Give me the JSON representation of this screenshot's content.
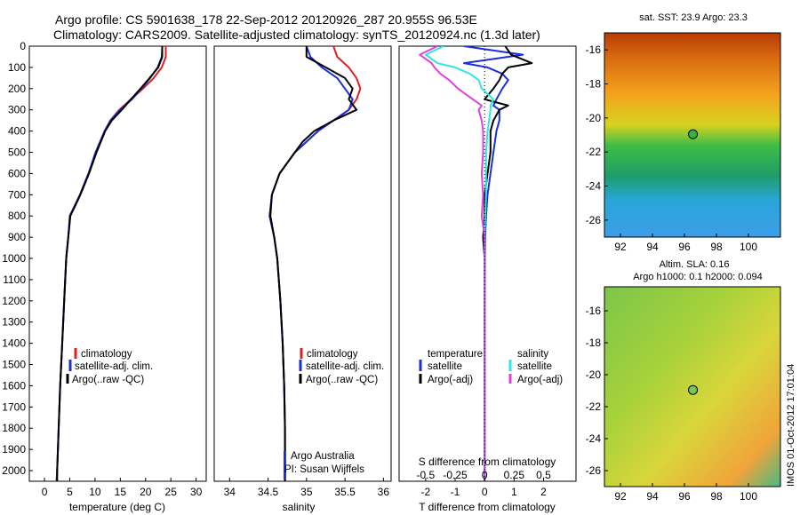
{
  "title": "Argo profile: CS 5901638_178 22-Sep-2012 20120926_287 20.955S 96.53E",
  "subtitle": "Climatology: CARS2009. Satellite-adjusted climatology: synTS_20120924.nc (1.3d later)",
  "credits": {
    "line1": "Argo Australia",
    "line2": "PI: Susan Wijffels"
  },
  "footer": {
    "timestamp": "IMOS 01-Oct-2012 17:01:04"
  },
  "depth_axis": {
    "ticks": [
      0,
      100,
      200,
      300,
      400,
      500,
      600,
      700,
      800,
      900,
      1000,
      1100,
      1200,
      1300,
      1400,
      1500,
      1600,
      1700,
      1800,
      1900,
      2000
    ],
    "ylim": [
      2050,
      0
    ]
  },
  "colors": {
    "climatology": "#e02020",
    "satellite": "#1a2fd8",
    "argo": "#000000",
    "salinity_satellite": "#30e5e5",
    "salinity_argo": "#e040e0"
  },
  "chart_data": [
    {
      "type": "line",
      "xlabel": "temperature (deg C)",
      "ylabel": "",
      "xlim": [
        -3,
        32
      ],
      "ylim": [
        2050,
        0
      ],
      "xticks": [
        0,
        5,
        10,
        15,
        20,
        25,
        30
      ],
      "depth": [
        0,
        50,
        100,
        150,
        200,
        250,
        300,
        350,
        400,
        500,
        600,
        700,
        800,
        900,
        1000,
        1200,
        1400,
        1600,
        1800,
        2000,
        2050
      ],
      "series": [
        {
          "name": "climatology",
          "color": "#e02020",
          "values": [
            24.0,
            24.0,
            23.2,
            21.6,
            19.5,
            17.1,
            14.8,
            13.0,
            11.9,
            10.2,
            8.8,
            7.1,
            5.1,
            4.7,
            4.3,
            3.9,
            3.5,
            3.1,
            2.8,
            2.5,
            2.4
          ]
        },
        {
          "name": "satellite-adj. clim.",
          "color": "#1a2fd8",
          "values": [
            23.3,
            23.2,
            22.4,
            20.9,
            19.2,
            17.3,
            14.9,
            13.1,
            11.9,
            10.1,
            8.7,
            7.0,
            5.0,
            4.7,
            4.3,
            3.9,
            3.5,
            3.1,
            2.8,
            2.5,
            2.4
          ]
        },
        {
          "name": "Argo(..raw -QC)",
          "color": "#000000",
          "values": [
            23.3,
            23.3,
            22.5,
            20.8,
            19.0,
            17.1,
            15.3,
            13.3,
            12.0,
            10.3,
            8.8,
            7.1,
            5.1,
            4.7,
            4.3,
            3.9,
            3.5,
            3.1,
            2.8,
            2.5,
            2.5
          ]
        }
      ]
    },
    {
      "type": "line",
      "xlabel": "salinity",
      "ylabel": "",
      "xlim": [
        33.8,
        36.1
      ],
      "ylim": [
        2050,
        0
      ],
      "xticks": [
        34,
        34.5,
        35,
        35.5,
        36
      ],
      "depth": [
        0,
        50,
        100,
        150,
        200,
        250,
        300,
        350,
        400,
        450,
        500,
        600,
        700,
        800,
        900,
        1000,
        1200,
        1400,
        1600,
        1800,
        2000,
        2050
      ],
      "series": [
        {
          "name": "climatology",
          "color": "#e02020",
          "values": [
            35.35,
            35.4,
            35.55,
            35.65,
            35.7,
            35.65,
            35.55,
            35.35,
            35.15,
            35.0,
            34.85,
            34.65,
            34.55,
            34.52,
            34.58,
            34.62,
            34.66,
            34.69,
            34.71,
            34.72,
            34.72,
            34.72
          ]
        },
        {
          "name": "satellite-adj. clim.",
          "color": "#1a2fd8",
          "values": [
            35.0,
            35.05,
            35.2,
            35.4,
            35.5,
            35.6,
            35.55,
            35.35,
            35.15,
            35.0,
            34.85,
            34.65,
            34.55,
            34.52,
            34.58,
            34.62,
            34.66,
            34.69,
            34.71,
            34.72,
            34.72,
            34.72
          ]
        },
        {
          "name": "Argo(..raw -QC)",
          "color": "#000000",
          "values": [
            35.0,
            35.0,
            35.25,
            35.5,
            35.6,
            35.55,
            35.65,
            35.35,
            35.1,
            34.95,
            34.85,
            34.65,
            34.55,
            34.53,
            34.58,
            34.62,
            34.66,
            34.69,
            34.71,
            34.72,
            34.72,
            34.72
          ]
        }
      ]
    },
    {
      "type": "line",
      "xlabel": "T difference from climatology",
      "xlabel2": "S difference from climatology",
      "ylabel": "",
      "xlim": [
        -2.9,
        3.1
      ],
      "ylim": [
        2050,
        0
      ],
      "xticks": [
        -2,
        -1,
        0,
        1,
        2
      ],
      "xticks_s": [
        "-0.5",
        "-0.25",
        "0",
        "0.25",
        "0.5"
      ],
      "legend": {
        "temperature_heading": "temperature",
        "salinity_heading": "salinity"
      },
      "depth": [
        0,
        40,
        80,
        100,
        130,
        160,
        200,
        250,
        280,
        300,
        350,
        400,
        500,
        600,
        700,
        800,
        900,
        1000,
        1200,
        1500,
        1800,
        2000,
        2050
      ],
      "series": [
        {
          "name": "satellite",
          "color": "#1a2fd8",
          "values": [
            -0.7,
            1.3,
            -0.7,
            0.1,
            0.6,
            0.8,
            0.6,
            0.4,
            0.3,
            0.5,
            0.5,
            0.4,
            0.3,
            0.2,
            0.1,
            0.05,
            0.02,
            0.01,
            0.0,
            0.0,
            0.0,
            0.0,
            0.0
          ]
        },
        {
          "name": "Argo(-adj)",
          "color": "#000000",
          "values": [
            0.7,
            0.9,
            1.6,
            0.8,
            0.6,
            0.5,
            0.3,
            0.0,
            0.8,
            0.5,
            0.3,
            0.2,
            0.2,
            0.1,
            0.0,
            0.0,
            -0.05,
            0.0,
            0.0,
            0.0,
            0.0,
            0.0,
            0.0
          ]
        },
        {
          "name": "satellite",
          "color": "#30e5e5",
          "values": [
            -1.4,
            -2.0,
            -1.6,
            -1.0,
            -0.5,
            -0.2,
            -0.1,
            0.3,
            0.2,
            0.2,
            0.15,
            0.1,
            0.05,
            0.05,
            0.05,
            0.02,
            0.0,
            0.0,
            0.0,
            0.0,
            0.0,
            0.0,
            0.0
          ]
        },
        {
          "name": "Argo(-adj)",
          "color": "#e040e0",
          "values": [
            -1.6,
            -2.2,
            -1.8,
            -1.7,
            -1.5,
            -1.2,
            -0.9,
            -0.4,
            -0.1,
            -0.2,
            -0.1,
            -0.05,
            -0.05,
            -0.1,
            -0.05,
            -0.1,
            0.0,
            0.0,
            0.0,
            0.0,
            0.0,
            0.0,
            0.0
          ]
        }
      ]
    },
    {
      "type": "heatmap",
      "title": "sat. SST: 23.9  Argo: 23.3",
      "xlim": [
        91,
        102
      ],
      "ylim": [
        -27,
        -15
      ],
      "xticks": [
        92,
        94,
        96,
        98,
        100
      ],
      "yticks": [
        -16,
        -18,
        -20,
        -22,
        -24,
        -26
      ],
      "marker": {
        "lon": 96.53,
        "lat": -20.955
      }
    },
    {
      "type": "heatmap",
      "title": "Altim. SLA: 0.16",
      "subtitle": "Argo h1000: 0.1  h2000: 0.094",
      "xlim": [
        91,
        102
      ],
      "ylim": [
        -27,
        -14.5
      ],
      "xticks": [
        92,
        94,
        96,
        98,
        100
      ],
      "yticks": [
        -16,
        -18,
        -20,
        -22,
        -24,
        -26
      ],
      "marker": {
        "lon": 96.53,
        "lat": -20.955
      }
    }
  ]
}
